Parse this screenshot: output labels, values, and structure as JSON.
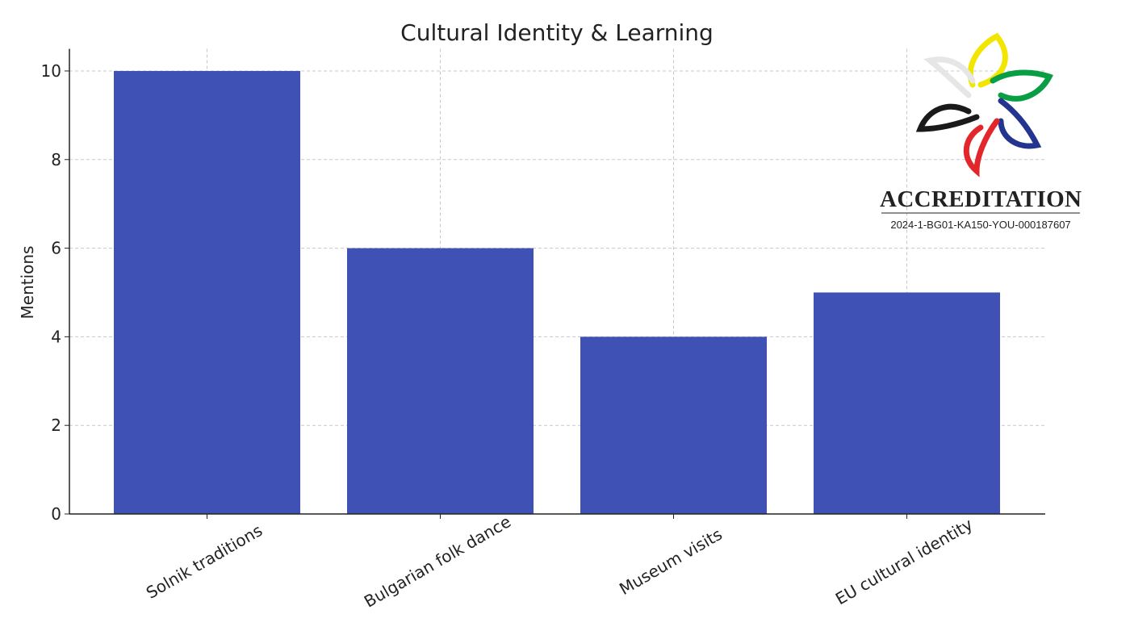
{
  "chart_data": {
    "type": "bar",
    "title": "Cultural Identity & Learning",
    "y_label": "Mentions",
    "categories": [
      "Solnik traditions",
      "Bulgarian folk dance",
      "Museum visits",
      "EU cultural identity"
    ],
    "values": [
      10,
      6,
      4,
      5
    ],
    "color": "#3f51b5",
    "ylim": [
      0,
      10.5
    ],
    "yticks": [
      0,
      2,
      4,
      6,
      8,
      10
    ],
    "grid": true
  },
  "logo": {
    "title": "ACCREDITATION",
    "code": "2024-1-BG01-KA150-YOU-000187607"
  }
}
